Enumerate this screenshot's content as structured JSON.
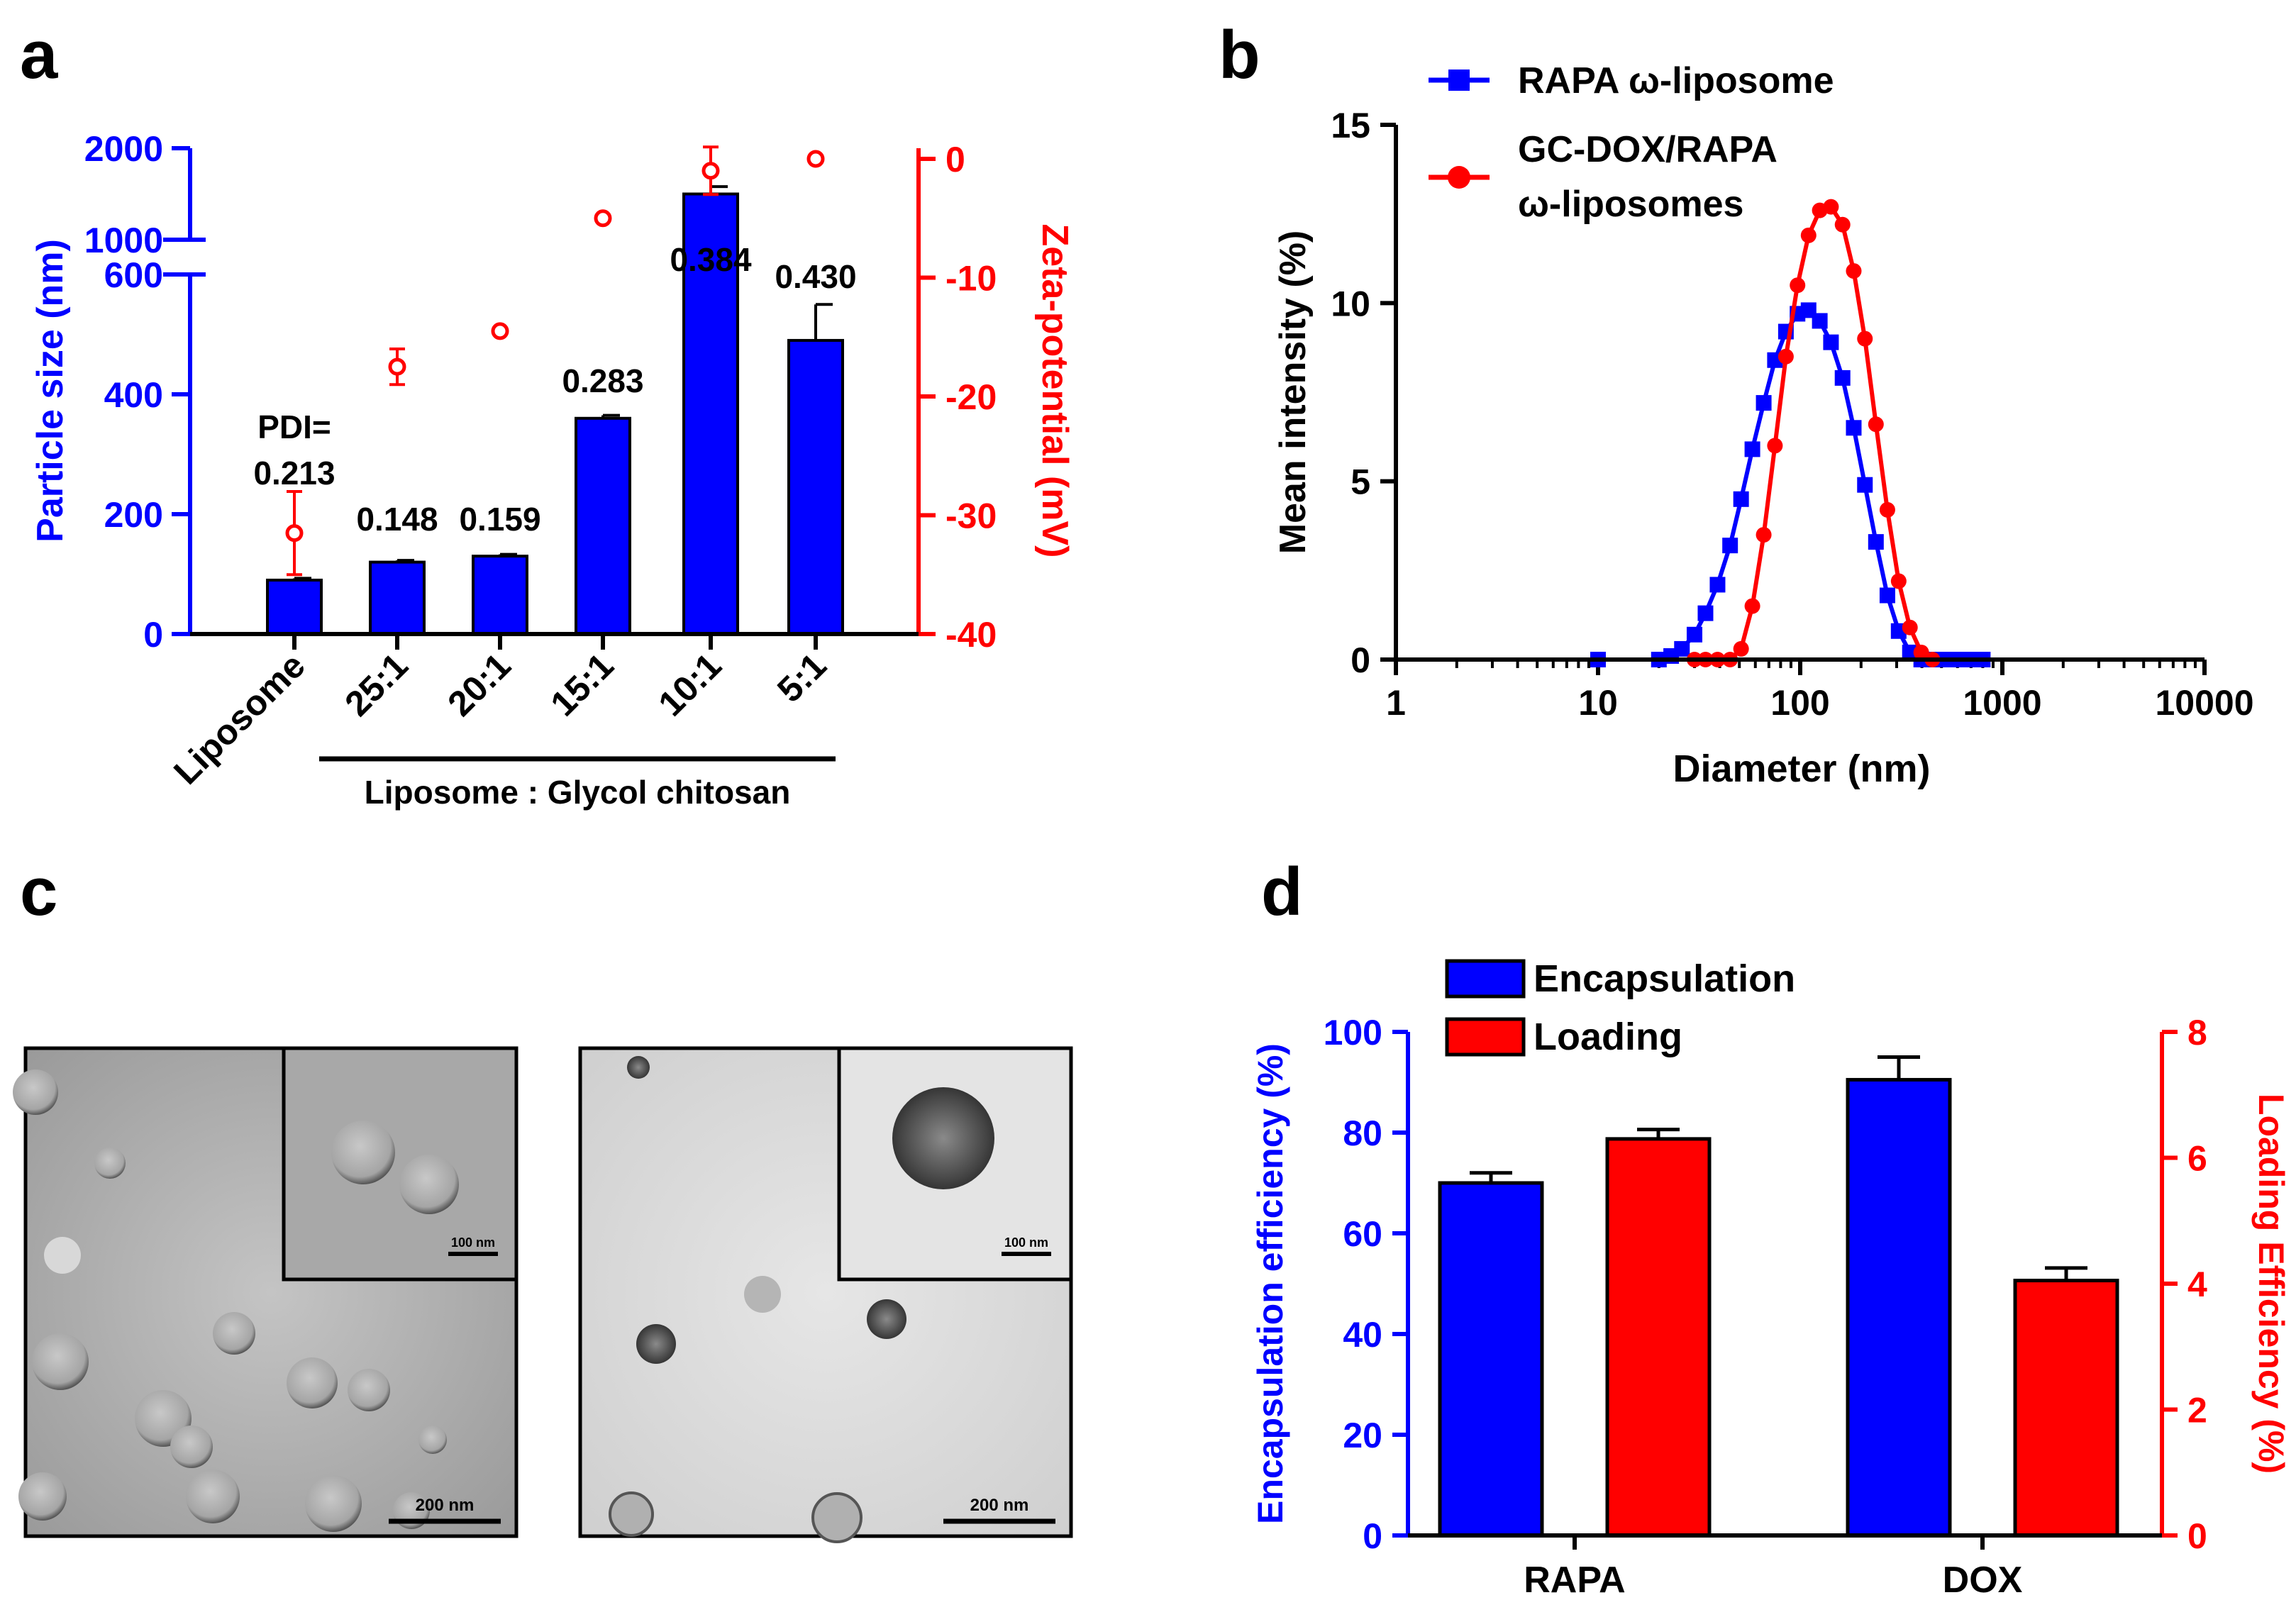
{
  "panels": {
    "a": "a",
    "b": "b",
    "c": "c",
    "d": "d"
  },
  "colors": {
    "blue": "#0000ff",
    "red": "#ff0000",
    "black": "#000000"
  },
  "chart_data": [
    {
      "id": "a",
      "type": "bar",
      "categories": [
        "Liposome",
        "25:1",
        "20:1",
        "15:1",
        "10:1",
        "5:1"
      ],
      "group_label": "Liposome : Glycol chitosan",
      "series": [
        {
          "name": "Particle size (nm)",
          "axis": "left",
          "values": [
            90,
            120,
            130,
            360,
            1500,
            490
          ],
          "errors": [
            3,
            3,
            3,
            5,
            80,
            60
          ]
        },
        {
          "name": "Zeta-potential (mV)",
          "axis": "right",
          "type": "scatter",
          "values": [
            -31.5,
            -17.5,
            -14.5,
            -5,
            -1,
            0
          ],
          "errors": [
            3.5,
            1.5,
            0,
            0,
            2,
            0
          ]
        }
      ],
      "data_labels": [
        "PDI=",
        "0.213",
        "0.148",
        "0.159",
        "0.283",
        "0.384",
        "0.430"
      ],
      "ylabel": "Particle size (nm)",
      "y2label": "Zeta-potential (mV)",
      "ylim_lower": [
        0,
        600
      ],
      "ylim_upper": [
        1000,
        2000
      ],
      "yticks_lower": [
        "0",
        "200",
        "400",
        "600"
      ],
      "yticks_upper": [
        "1000",
        "2000"
      ],
      "y2lim": [
        -40,
        0
      ],
      "y2ticks": [
        "0",
        "-10",
        "-20",
        "-30",
        "-40"
      ]
    },
    {
      "id": "b",
      "type": "line",
      "xscale": "log",
      "xlabel": "Diameter (nm)",
      "ylabel": "Mean intensity (%)",
      "xlim": [
        1,
        10000
      ],
      "ylim": [
        0,
        15
      ],
      "xticks": [
        "1",
        "10",
        "100",
        "1000",
        "10000"
      ],
      "yticks": [
        "0",
        "5",
        "10",
        "15"
      ],
      "legend": [
        "RAPA ω-liposome",
        "GC-DOX/RAPA",
        "ω-liposomes"
      ],
      "series": [
        {
          "name": "RAPA ω-liposome",
          "marker": "square",
          "x": [
            10,
            20,
            23,
            26,
            30,
            34,
            39,
            45,
            51,
            58,
            66,
            75,
            85,
            97,
            110,
            125,
            142,
            162,
            184,
            209,
            237,
            270,
            307,
            349,
            397,
            451,
            513,
            583,
            662,
            753,
            800
          ],
          "y": [
            0,
            0,
            0.1,
            0.3,
            0.7,
            1.3,
            2.1,
            3.2,
            4.5,
            5.9,
            7.2,
            8.4,
            9.2,
            9.7,
            9.8,
            9.5,
            8.9,
            7.9,
            6.5,
            4.9,
            3.3,
            1.8,
            0.8,
            0.2,
            0,
            0,
            0,
            0,
            0,
            0,
            0
          ]
        },
        {
          "name": "GC-DOX/RAPA ω-liposomes",
          "marker": "circle",
          "x": [
            30,
            34,
            39,
            45,
            51,
            58,
            66,
            75,
            85,
            97,
            110,
            125,
            142,
            162,
            184,
            209,
            237,
            270,
            307,
            349,
            397,
            451
          ],
          "y": [
            0,
            0,
            0,
            0,
            0.3,
            1.5,
            3.5,
            6.0,
            8.5,
            10.5,
            11.9,
            12.6,
            12.7,
            12.2,
            10.9,
            9.0,
            6.6,
            4.2,
            2.2,
            0.9,
            0.2,
            0
          ]
        }
      ]
    },
    {
      "id": "c",
      "type": "table",
      "images": [
        {
          "scale_main": "200 nm",
          "scale_inset": "100 nm"
        },
        {
          "scale_main": "200 nm",
          "scale_inset": "100 nm"
        }
      ]
    },
    {
      "id": "d",
      "type": "bar",
      "categories": [
        "RAPA",
        "DOX"
      ],
      "series": [
        {
          "name": "Encapsulation",
          "axis": "left",
          "values": [
            70,
            90.5
          ],
          "errors": [
            2,
            4.5
          ]
        },
        {
          "name": "Loading",
          "axis": "right",
          "values": [
            6.3,
            4.05
          ],
          "errors": [
            0.15,
            0.2
          ]
        }
      ],
      "ylabel": "Encapsulation efficiency (%)",
      "y2label": "Loading Efficiency (%)",
      "ylim": [
        0,
        100
      ],
      "yticks": [
        "0",
        "20",
        "40",
        "60",
        "80",
        "100"
      ],
      "y2lim": [
        0,
        8
      ],
      "y2ticks": [
        "0",
        "2",
        "4",
        "6",
        "8"
      ],
      "legend": [
        "Encapsulation",
        "Loading"
      ]
    }
  ]
}
